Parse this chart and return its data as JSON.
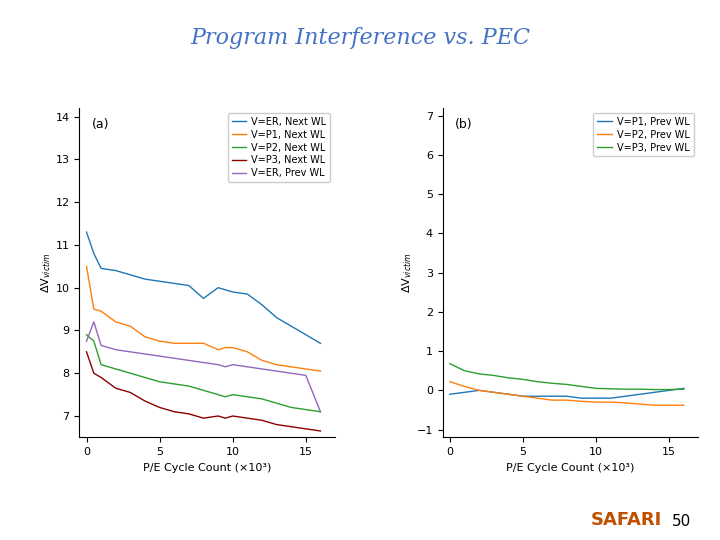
{
  "title": "Program Interference vs. PEC",
  "title_color": "#4472C4",
  "title_fontsize": 16,
  "background_color": "#ffffff",
  "safari_color": "#C05000",
  "page_number": "50",
  "subplot_a": {
    "label": "(a)",
    "xlabel": "P/E Cycle Count (×10³)",
    "ylabel": "ΔV$_{victim}$",
    "ylim": [
      6.5,
      14.2
    ],
    "yticks": [
      7,
      8,
      9,
      10,
      11,
      12,
      13,
      14
    ],
    "xlim": [
      -0.5,
      17
    ],
    "xticks": [
      0,
      5,
      10,
      15
    ],
    "series": [
      {
        "label": "V=ER, Next WL",
        "color": "#1f77b4",
        "x": [
          0,
          0.5,
          1,
          2,
          3,
          4,
          5,
          6,
          7,
          8,
          9,
          9.5,
          10,
          11,
          12,
          13,
          14,
          15,
          16
        ],
        "y": [
          11.3,
          10.8,
          10.45,
          10.4,
          10.3,
          10.2,
          10.15,
          10.1,
          10.05,
          9.75,
          10.0,
          9.95,
          9.9,
          9.85,
          9.6,
          9.3,
          9.1,
          8.9,
          8.7
        ]
      },
      {
        "label": "V=P1, Next WL",
        "color": "#ff7f0e",
        "x": [
          0,
          0.5,
          1,
          2,
          3,
          4,
          5,
          6,
          7,
          8,
          9,
          9.5,
          10,
          11,
          12,
          13,
          14,
          15,
          16
        ],
        "y": [
          10.5,
          9.5,
          9.45,
          9.2,
          9.1,
          8.85,
          8.75,
          8.7,
          8.7,
          8.7,
          8.55,
          8.6,
          8.6,
          8.5,
          8.3,
          8.2,
          8.15,
          8.1,
          8.05
        ]
      },
      {
        "label": "V=P2, Next WL",
        "color": "#2ca02c",
        "x": [
          0,
          0.5,
          1,
          2,
          3,
          4,
          5,
          6,
          7,
          8,
          9,
          9.5,
          10,
          11,
          12,
          13,
          14,
          15,
          16
        ],
        "y": [
          8.9,
          8.75,
          8.2,
          8.1,
          8.0,
          7.9,
          7.8,
          7.75,
          7.7,
          7.6,
          7.5,
          7.45,
          7.5,
          7.45,
          7.4,
          7.3,
          7.2,
          7.15,
          7.1
        ]
      },
      {
        "label": "V=P3, Next WL",
        "color": "#8B0000",
        "x": [
          0,
          0.5,
          1,
          2,
          3,
          4,
          5,
          6,
          7,
          8,
          9,
          9.5,
          10,
          11,
          12,
          13,
          14,
          15,
          16
        ],
        "y": [
          8.5,
          8.0,
          7.9,
          7.65,
          7.55,
          7.35,
          7.2,
          7.1,
          7.05,
          6.95,
          7.0,
          6.95,
          7.0,
          6.95,
          6.9,
          6.8,
          6.75,
          6.7,
          6.65
        ]
      },
      {
        "label": "V=ER, Prev WL",
        "color": "#9467bd",
        "x": [
          0,
          0.5,
          1,
          2,
          3,
          4,
          5,
          6,
          7,
          8,
          9,
          9.5,
          10,
          11,
          12,
          13,
          14,
          15,
          16
        ],
        "y": [
          8.75,
          9.2,
          8.65,
          8.55,
          8.5,
          8.45,
          8.4,
          8.35,
          8.3,
          8.25,
          8.2,
          8.15,
          8.2,
          8.15,
          8.1,
          8.05,
          8.0,
          7.95,
          7.1
        ]
      }
    ]
  },
  "subplot_b": {
    "label": "(b)",
    "xlabel": "P/E Cycle Count (×10³)",
    "ylabel": "ΔV$_{victim}$",
    "ylim": [
      -1.2,
      7.2
    ],
    "yticks": [
      -1,
      0,
      1,
      2,
      3,
      4,
      5,
      6,
      7
    ],
    "xlim": [
      -0.5,
      17
    ],
    "xticks": [
      0,
      5,
      10,
      15
    ],
    "series": [
      {
        "label": "V=P1, Prev WL",
        "color": "#1f77b4",
        "x": [
          0,
          1,
          2,
          3,
          4,
          5,
          6,
          7,
          8,
          9,
          10,
          11,
          12,
          13,
          14,
          15,
          16
        ],
        "y": [
          -0.1,
          -0.05,
          0.0,
          -0.05,
          -0.1,
          -0.15,
          -0.15,
          -0.15,
          -0.15,
          -0.2,
          -0.2,
          -0.2,
          -0.15,
          -0.1,
          -0.05,
          0.0,
          0.05
        ]
      },
      {
        "label": "V=P2, Prev WL",
        "color": "#ff7f0e",
        "x": [
          0,
          1,
          2,
          3,
          4,
          5,
          6,
          7,
          8,
          9,
          10,
          11,
          12,
          13,
          14,
          15,
          16
        ],
        "y": [
          0.22,
          0.1,
          0.0,
          -0.05,
          -0.1,
          -0.15,
          -0.2,
          -0.25,
          -0.25,
          -0.28,
          -0.3,
          -0.3,
          -0.32,
          -0.35,
          -0.38,
          -0.38,
          -0.38
        ]
      },
      {
        "label": "V=P3, Prev WL",
        "color": "#2ca02c",
        "x": [
          0,
          1,
          2,
          3,
          4,
          5,
          6,
          7,
          8,
          9,
          10,
          11,
          12,
          13,
          14,
          15,
          16
        ],
        "y": [
          0.68,
          0.5,
          0.42,
          0.38,
          0.32,
          0.28,
          0.22,
          0.18,
          0.15,
          0.1,
          0.05,
          0.04,
          0.03,
          0.03,
          0.02,
          0.02,
          0.03
        ]
      }
    ]
  }
}
